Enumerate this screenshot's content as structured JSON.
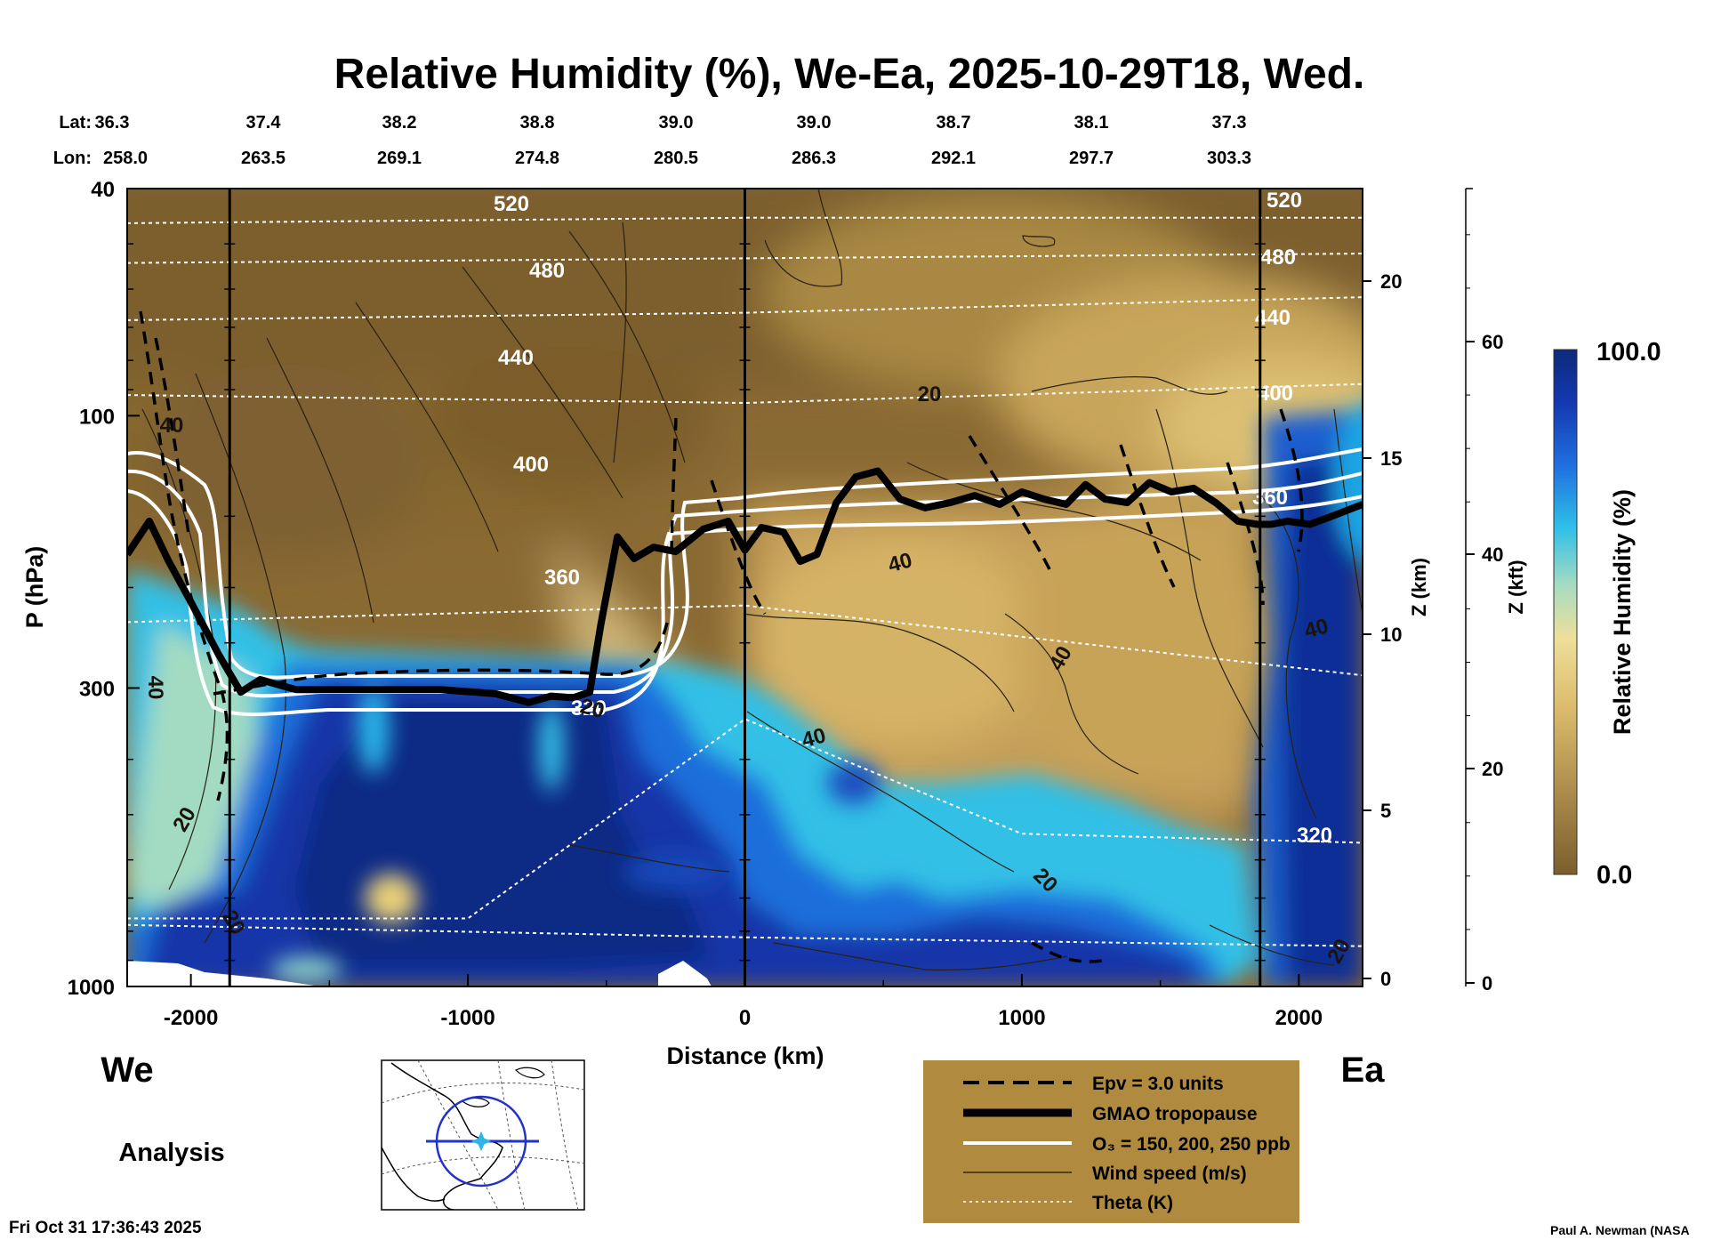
{
  "chart_data": {
    "type": "heatmap",
    "title": "Relative Humidity (%), We-Ea, 2025-10-29T18, Wed.",
    "xlabel": "Distance (km)",
    "ylabel": "P (hPa)",
    "y2label": "Z (km)",
    "y3label": "Z (kft)",
    "colorbar_label": "Relative Humidity (%)",
    "colorbar_max": "100.0",
    "colorbar_min": "0.0",
    "xlim": [
      -2230,
      2230
    ],
    "ylim": [
      1000,
      40
    ],
    "y_scale": "log",
    "x_ticks": [
      "-2000",
      "-1000",
      "0",
      "1000",
      "2000"
    ],
    "y_ticks": [
      "40",
      "100",
      "300",
      "1000"
    ],
    "z_km_ticks": [
      "0",
      "5",
      "10",
      "15",
      "20"
    ],
    "z_kft_ticks": [
      "0",
      "20",
      "40",
      "60"
    ],
    "lat_label": "Lat:",
    "lon_label": "Lon:",
    "lat": [
      "36.3",
      "37.4",
      "38.2",
      "38.8",
      "39.0",
      "39.0",
      "38.7",
      "38.1",
      "37.3"
    ],
    "lon": [
      "258.0",
      "263.5",
      "269.1",
      "274.8",
      "280.5",
      "286.3",
      "292.1",
      "297.7",
      "303.3"
    ],
    "theta_labels": [
      "520",
      "480",
      "440",
      "400",
      "360",
      "320",
      "520",
      "480",
      "440",
      "400",
      "360",
      "320"
    ],
    "wind_labels": [
      "40",
      "40",
      "20",
      "20",
      "20",
      "40",
      "40",
      "40",
      "40",
      "20",
      "20",
      "20"
    ],
    "section_ends": {
      "west": "We",
      "east": "Ea"
    },
    "product": "Analysis",
    "timestamp": "Fri Oct 31 17:36:43 2025",
    "credit": "Paul A. Newman (NASA",
    "legend": [
      {
        "label": "Epv = 3.0 units",
        "style": "dashed"
      },
      {
        "label": "GMAO tropopause",
        "style": "thick"
      },
      {
        "label": "O₃ = 150, 200, 250 ppb",
        "style": "white"
      },
      {
        "label": "Wind speed (m/s)",
        "style": "thin"
      },
      {
        "label": "Theta (K)",
        "style": "dotted"
      }
    ],
    "tropopause": {
      "x": [
        -2230,
        -2150,
        -2080,
        -2000,
        -1900,
        -1820,
        -1750,
        -1620,
        -1400,
        -1100,
        -900,
        -780,
        -700,
        -620,
        -560,
        -520,
        -460,
        -400,
        -330,
        -250,
        -150,
        -60,
        0,
        60,
        140,
        200,
        260,
        330,
        400,
        480,
        560,
        650,
        740,
        830,
        920,
        1000,
        1080,
        1160,
        1230,
        1300,
        1380,
        1460,
        1540,
        1620,
        1700,
        1780,
        1850,
        1900,
        1960,
        2040,
        2120,
        2230
      ],
      "hPa": [
        175,
        153,
        180,
        212,
        262,
        305,
        290,
        302,
        302,
        302,
        307,
        318,
        310,
        312,
        305,
        232,
        163,
        178,
        170,
        173,
        158,
        153,
        172,
        157,
        160,
        180,
        175,
        142,
        128,
        125,
        140,
        145,
        142,
        138,
        143,
        136,
        140,
        143,
        132,
        140,
        142,
        131,
        136,
        134,
        142,
        153,
        155,
        155,
        153,
        155,
        150,
        143
      ]
    },
    "theta_K": [
      {
        "value": 520,
        "x": [
          -2230,
          0,
          2230
        ],
        "hPa": [
          46,
          45,
          45
        ]
      },
      {
        "value": 480,
        "x": [
          -2230,
          0,
          2230
        ],
        "hPa": [
          54,
          53,
          52
        ]
      },
      {
        "value": 440,
        "x": [
          -2230,
          0,
          2230
        ],
        "hPa": [
          68,
          66,
          62
        ]
      },
      {
        "value": 400,
        "x": [
          -2230,
          0,
          2230
        ],
        "hPa": [
          92,
          95,
          88
        ]
      },
      {
        "value": 360,
        "x": [
          -2230,
          0,
          2230
        ],
        "hPa": [
          230,
          215,
          285
        ]
      },
      {
        "value": 320,
        "x": [
          -2230,
          -1000,
          0,
          1000,
          2230
        ],
        "hPa": [
          760,
          760,
          340,
          540,
          560
        ]
      },
      {
        "value": 300,
        "x": [
          -2230,
          0,
          2230
        ],
        "hPa": [
          780,
          820,
          850
        ]
      }
    ],
    "colors": {
      "background": "#ffffff",
      "rh_low": "#7b5e2c",
      "rh_mid": "#d9b563",
      "rh_high": "#10308a",
      "legend_box": "#b08b3f"
    }
  }
}
